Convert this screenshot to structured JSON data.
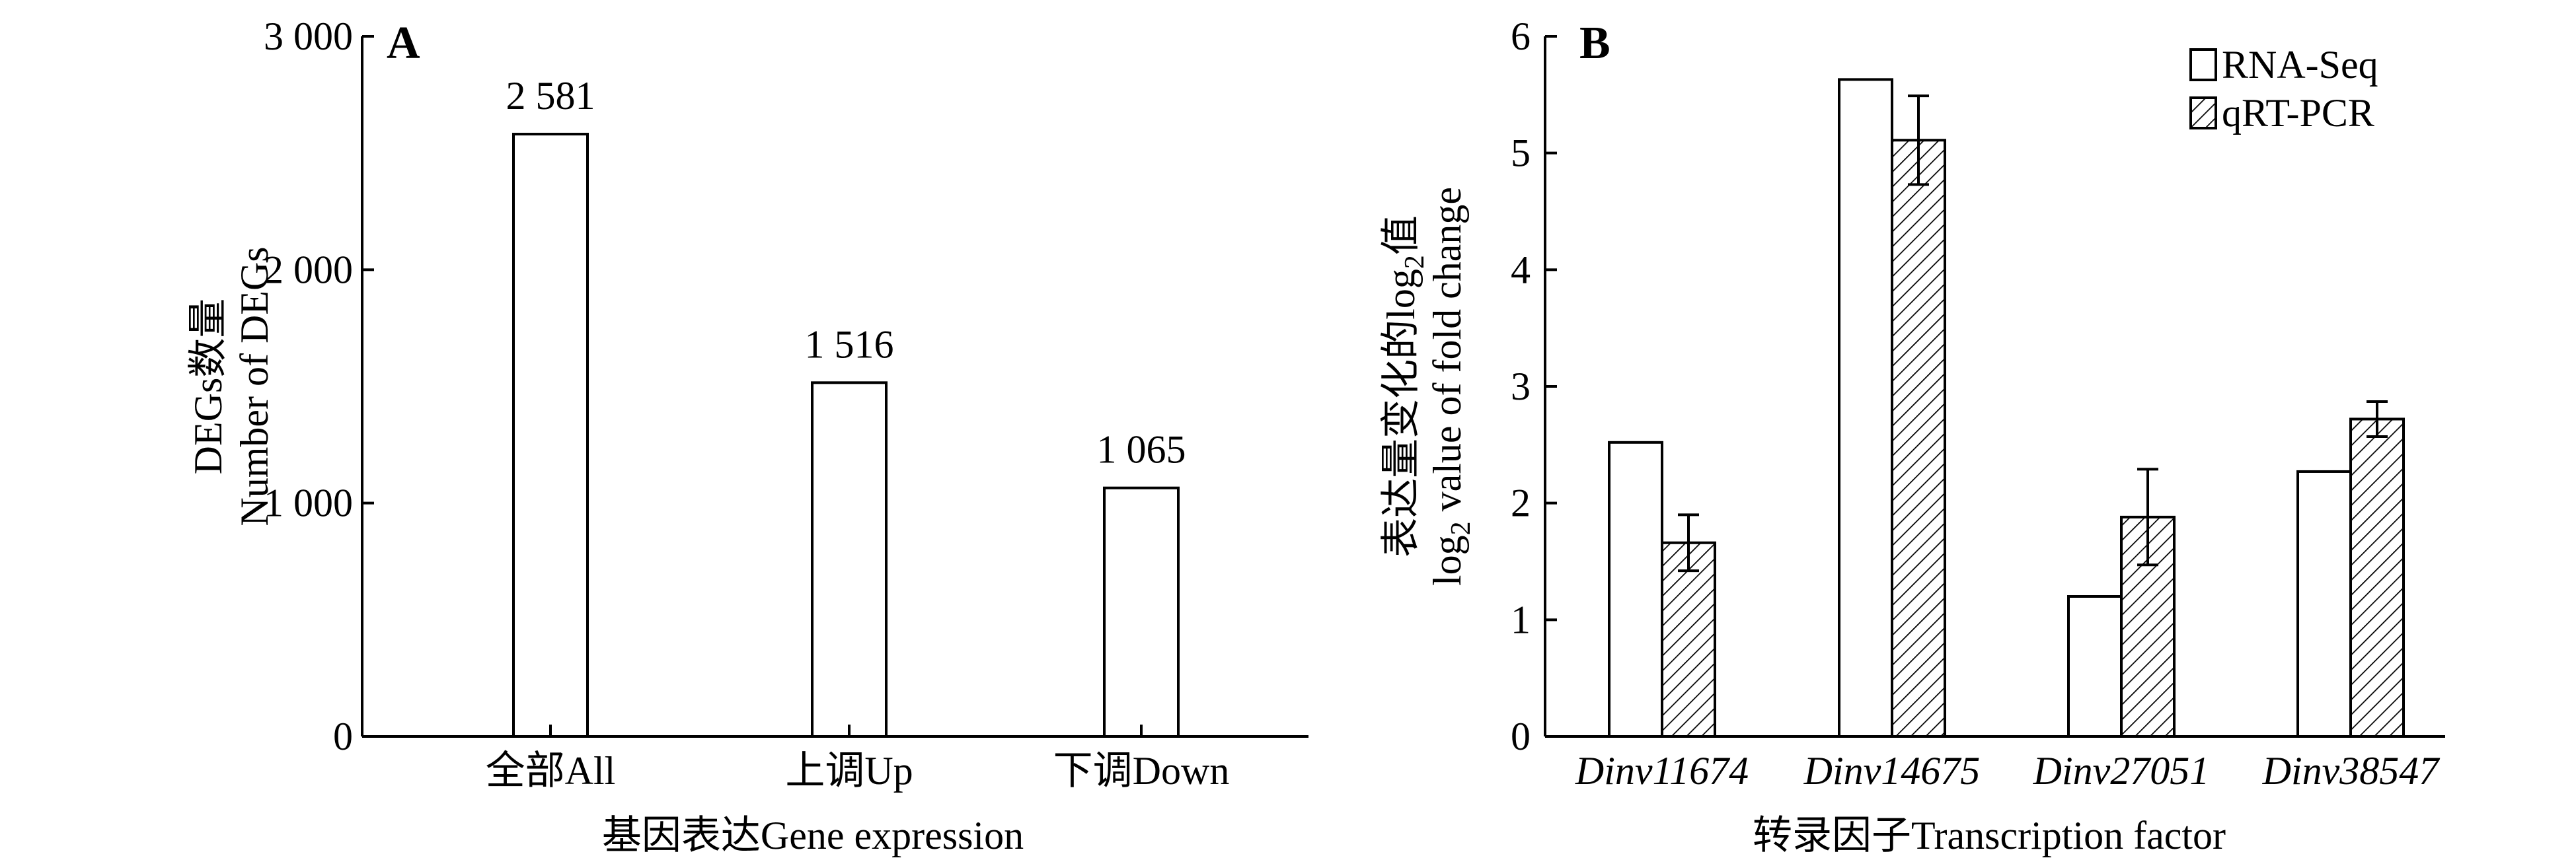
{
  "chart_data": [
    {
      "panel_label": "A",
      "type": "bar",
      "categories": [
        "全部All",
        "上调Up",
        "下调Down"
      ],
      "values": [
        2581,
        1516,
        1065
      ],
      "value_labels": [
        "2 581",
        "1 516",
        "1 065"
      ],
      "xlabel": "基因表达Gene expression",
      "ylabel_lines": [
        "DEGs数量",
        "Number of DEGs"
      ],
      "ylim": [
        0,
        3000
      ],
      "yticks": [
        0,
        1000,
        2000,
        3000
      ],
      "ytick_labels": [
        "0",
        "1 000",
        "2 000",
        "3 000"
      ],
      "grid": false
    },
    {
      "panel_label": "B",
      "type": "bar",
      "categories": [
        "Dinv11674",
        "Dinv14675",
        "Dinv27051",
        "Dinv38547"
      ],
      "series": [
        {
          "name": "RNA-Seq",
          "fill": "#ffffff",
          "values": [
            2.52,
            5.63,
            1.2,
            2.27
          ]
        },
        {
          "name": "qRT-PCR",
          "fill": "hatched",
          "values": [
            1.66,
            5.11,
            1.88,
            2.72
          ],
          "errors": [
            0.24,
            0.38,
            0.41,
            0.15
          ]
        }
      ],
      "xlabel": "转录因子Transcription factor",
      "ylabel_line1": "表达量变化的log2值",
      "ylabel_line2_parts": [
        "log",
        "2",
        " value of fold change"
      ],
      "ylabel_line1_parts": [
        "表达量变化的log",
        "2",
        "值"
      ],
      "ylim": [
        0,
        6
      ],
      "yticks": [
        0,
        1,
        2,
        3,
        4,
        5,
        6
      ],
      "legend_position": "top-right",
      "grid": false
    }
  ]
}
